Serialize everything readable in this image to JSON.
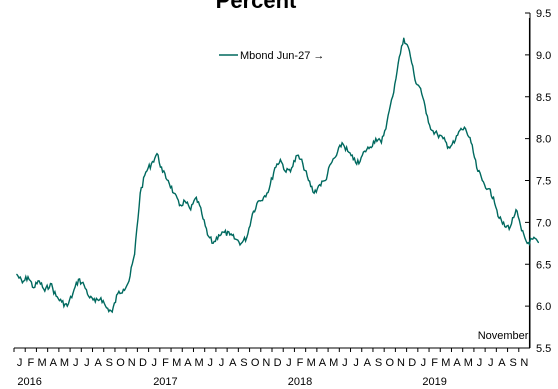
{
  "chart_data": {
    "type": "line",
    "title": "Percent",
    "y_axis_side": "right",
    "ylim": [
      5.5,
      9.5
    ],
    "yticks": [
      "5.5",
      "6.0",
      "6.5",
      "7.0",
      "7.5",
      "8.0",
      "8.5",
      "9.0",
      "9.5"
    ],
    "month_labels": [
      "J",
      "F",
      "M",
      "A",
      "M",
      "J",
      "J",
      "A",
      "S",
      "O",
      "N",
      "D",
      "J",
      "F",
      "M",
      "A",
      "M",
      "J",
      "J",
      "A",
      "S",
      "O",
      "N",
      "D",
      "J",
      "F",
      "M",
      "A",
      "M",
      "J",
      "J",
      "A",
      "S",
      "O",
      "N",
      "D",
      "J",
      "F",
      "M",
      "A",
      "M",
      "J",
      "J",
      "A",
      "S",
      "N"
    ],
    "year_labels": [
      "2016",
      "2017",
      "2018",
      "2019"
    ],
    "x_range": [
      "2016-01",
      "2019-11"
    ],
    "series": [
      {
        "name": "Mbond Jun-27 →",
        "color": "#00695f",
        "points": [
          [
            "2016-01",
            6.38
          ],
          [
            "2016-01",
            6.28
          ],
          [
            "2016-02",
            6.35
          ],
          [
            "2016-02",
            6.22
          ],
          [
            "2016-03",
            6.3
          ],
          [
            "2016-03",
            6.18
          ],
          [
            "2016-04",
            6.27
          ],
          [
            "2016-04",
            6.12
          ],
          [
            "2016-05",
            6.05
          ],
          [
            "2016-05",
            6.0
          ],
          [
            "2016-06",
            6.15
          ],
          [
            "2016-06",
            6.32
          ],
          [
            "2016-07",
            6.25
          ],
          [
            "2016-07",
            6.1
          ],
          [
            "2016-08",
            6.05
          ],
          [
            "2016-08",
            6.1
          ],
          [
            "2016-09",
            5.98
          ],
          [
            "2016-09",
            5.93
          ],
          [
            "2016-10",
            6.15
          ],
          [
            "2016-10",
            6.2
          ],
          [
            "2016-11",
            6.3
          ],
          [
            "2016-11",
            6.62
          ],
          [
            "2016-12",
            7.35
          ],
          [
            "2016-12",
            7.6
          ],
          [
            "2017-01",
            7.7
          ],
          [
            "2017-01",
            7.82
          ],
          [
            "2017-02",
            7.6
          ],
          [
            "2017-02",
            7.5
          ],
          [
            "2017-03",
            7.35
          ],
          [
            "2017-03",
            7.2
          ],
          [
            "2017-04",
            7.25
          ],
          [
            "2017-04",
            7.15
          ],
          [
            "2017-05",
            7.3
          ],
          [
            "2017-05",
            7.1
          ],
          [
            "2017-06",
            6.85
          ],
          [
            "2017-06",
            6.75
          ],
          [
            "2017-07",
            6.85
          ],
          [
            "2017-07",
            6.88
          ],
          [
            "2017-08",
            6.85
          ],
          [
            "2017-08",
            6.8
          ],
          [
            "2017-09",
            6.75
          ],
          [
            "2017-09",
            6.82
          ],
          [
            "2017-10",
            7.1
          ],
          [
            "2017-10",
            7.25
          ],
          [
            "2017-11",
            7.3
          ],
          [
            "2017-11",
            7.4
          ],
          [
            "2017-12",
            7.65
          ],
          [
            "2017-12",
            7.75
          ],
          [
            "2018-01",
            7.6
          ],
          [
            "2018-01",
            7.65
          ],
          [
            "2018-02",
            7.8
          ],
          [
            "2018-02",
            7.7
          ],
          [
            "2018-03",
            7.5
          ],
          [
            "2018-03",
            7.35
          ],
          [
            "2018-04",
            7.45
          ],
          [
            "2018-04",
            7.5
          ],
          [
            "2018-05",
            7.7
          ],
          [
            "2018-05",
            7.8
          ],
          [
            "2018-06",
            7.95
          ],
          [
            "2018-06",
            7.85
          ],
          [
            "2018-07",
            7.75
          ],
          [
            "2018-07",
            7.7
          ],
          [
            "2018-08",
            7.85
          ],
          [
            "2018-08",
            7.9
          ],
          [
            "2018-09",
            8.0
          ],
          [
            "2018-09",
            7.95
          ],
          [
            "2018-10",
            8.2
          ],
          [
            "2018-10",
            8.5
          ],
          [
            "2018-11",
            8.9
          ],
          [
            "2018-11",
            9.2
          ],
          [
            "2018-12",
            9.05
          ],
          [
            "2018-12",
            8.7
          ],
          [
            "2019-01",
            8.6
          ],
          [
            "2019-01",
            8.3
          ],
          [
            "2019-02",
            8.1
          ],
          [
            "2019-02",
            8.05
          ],
          [
            "2019-03",
            8.0
          ],
          [
            "2019-03",
            7.9
          ],
          [
            "2019-04",
            7.95
          ],
          [
            "2019-04",
            8.1
          ],
          [
            "2019-05",
            8.12
          ],
          [
            "2019-05",
            7.95
          ],
          [
            "2019-06",
            7.65
          ],
          [
            "2019-06",
            7.5
          ],
          [
            "2019-07",
            7.4
          ],
          [
            "2019-07",
            7.3
          ],
          [
            "2019-08",
            7.05
          ],
          [
            "2019-08",
            6.95
          ],
          [
            "2019-09",
            6.95
          ],
          [
            "2019-09",
            7.15
          ],
          [
            "2019-10",
            6.9
          ],
          [
            "2019-10",
            6.75
          ],
          [
            "2019-11",
            6.8
          ],
          [
            "2019-11",
            6.76
          ]
        ]
      }
    ],
    "vertical_marker": {
      "x": "2019-10",
      "label": "November"
    },
    "grid": false,
    "legend_position": "top-left"
  }
}
